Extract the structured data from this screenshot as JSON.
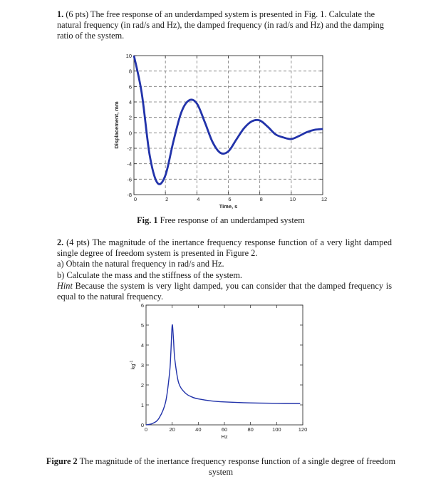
{
  "q1": {
    "number": "1.",
    "text": "(6 pts) The free response of an underdamped system is presented in Fig. 1. Calculate the natural frequency (in rad/s and Hz), the damped frequency (in rad/s and Hz) and the damping ratio of the system."
  },
  "fig1": {
    "caption_label": "Fig. 1",
    "caption_text": " Free response of an underdamped system"
  },
  "q2": {
    "number": "2.",
    "intro": " (4 pts) The magnitude of the inertance frequency response function of a very light damped single degree of freedom system is presented in Figure 2.",
    "a": "a) Obtain the natural frequency in rad/s and Hz.",
    "b": "b) Calculate the mass and the stiffness of the system.",
    "hint_label": "Hint",
    "hint_text": " Because the system is very light damped, you can consider that the damped frequency is equal to the natural frequency."
  },
  "fig2": {
    "caption_label": "Figure 2",
    "caption_text": " The magnitude of the inertance frequency response function of a single degree of freedom system"
  },
  "chart_data": [
    {
      "type": "line",
      "title": "",
      "xlabel": "Time, s",
      "ylabel": "Displacement, mm",
      "xlim": [
        0,
        12
      ],
      "ylim": [
        -8,
        10
      ],
      "xticks": [
        0,
        2,
        4,
        6,
        8,
        10,
        12
      ],
      "yticks": [
        -8,
        -6,
        -4,
        -2,
        0,
        2,
        4,
        6,
        8,
        10
      ],
      "grid": "dashed",
      "series": [
        {
          "color": "#2233aa",
          "x": [
            0,
            0.5,
            1,
            1.5,
            2,
            2.5,
            3,
            3.5,
            4,
            4.5,
            5,
            5.5,
            6,
            6.5,
            7,
            7.5,
            8,
            8.5,
            9,
            9.5,
            10,
            10.5,
            11,
            11.5,
            12
          ],
          "y": [
            10,
            5.1,
            -2.9,
            -6.5,
            -5.5,
            -1.2,
            2.6,
            4.2,
            3.8,
            1.4,
            -1.2,
            -2.6,
            -2.4,
            -0.9,
            0.6,
            1.5,
            1.6,
            0.8,
            -0.2,
            -0.6,
            -0.8,
            -0.4,
            0.1,
            0.4,
            0.5
          ]
        }
      ]
    },
    {
      "type": "line",
      "title": "",
      "xlabel": "Hz",
      "ylabel": "kg^-1",
      "xlim": [
        0,
        120
      ],
      "ylim": [
        0,
        6
      ],
      "xticks": [
        0,
        20,
        40,
        60,
        80,
        100,
        120
      ],
      "yticks": [
        0,
        1,
        2,
        3,
        4,
        5,
        6
      ],
      "grid": "none",
      "series": [
        {
          "color": "#2233aa",
          "x": [
            0,
            5,
            10,
            15,
            18,
            19,
            20,
            21,
            22,
            25,
            30,
            35,
            40,
            50,
            60,
            80,
            100,
            118
          ],
          "y": [
            0,
            0.07,
            0.34,
            1.15,
            2.6,
            3.6,
            5.0,
            4.3,
            3.3,
            2.1,
            1.6,
            1.4,
            1.3,
            1.2,
            1.15,
            1.1,
            1.08,
            1.07
          ]
        }
      ]
    }
  ]
}
